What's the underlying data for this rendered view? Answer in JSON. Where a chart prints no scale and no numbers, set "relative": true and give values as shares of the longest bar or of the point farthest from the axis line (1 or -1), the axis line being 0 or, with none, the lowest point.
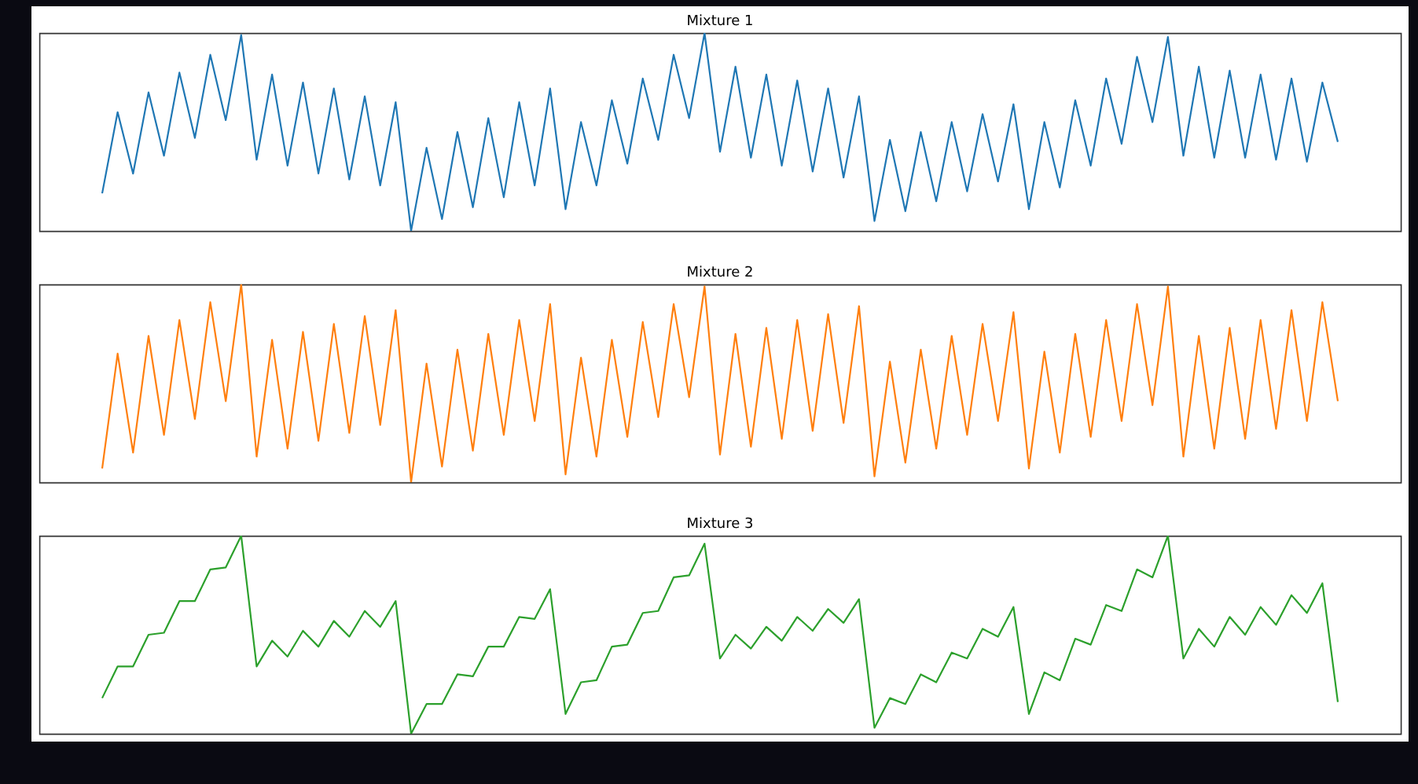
{
  "chart_data": [
    {
      "type": "line",
      "title": "Mixture 1",
      "relative": true,
      "tick_labels": false,
      "categories": [
        null,
        null,
        null,
        null,
        null,
        null,
        null,
        null,
        null,
        null,
        null,
        null,
        null,
        null,
        null,
        null,
        null,
        null,
        null,
        null,
        null,
        null,
        null,
        null,
        null,
        null,
        null,
        null,
        null,
        null,
        null,
        null,
        null,
        null,
        null,
        null,
        null,
        null,
        null,
        null,
        null,
        null,
        null,
        null,
        null,
        null,
        null,
        null,
        null,
        null,
        null,
        null,
        null,
        null,
        null,
        null,
        null,
        null,
        null,
        null,
        null,
        null,
        null,
        null,
        null,
        null,
        null,
        null,
        null,
        null,
        null,
        null,
        null,
        null,
        null,
        null,
        null,
        null,
        null,
        null,
        null
      ],
      "series": [
        {
          "color": "#1f77b4",
          "values": [
            0.19,
            0.6,
            0.29,
            0.7,
            0.38,
            0.8,
            0.47,
            0.89,
            0.56,
            0.99,
            0.36,
            0.79,
            0.33,
            0.75,
            0.29,
            0.72,
            0.26,
            0.68,
            0.23,
            0.65,
            0,
            0.42,
            0.06,
            0.5,
            0.12,
            0.57,
            0.17,
            0.65,
            0.23,
            0.72,
            0.11,
            0.55,
            0.23,
            0.66,
            0.34,
            0.77,
            0.46,
            0.89,
            0.57,
            1,
            0.4,
            0.83,
            0.37,
            0.79,
            0.33,
            0.76,
            0.3,
            0.72,
            0.27,
            0.68,
            0.05,
            0.46,
            0.1,
            0.5,
            0.15,
            0.55,
            0.2,
            0.59,
            0.25,
            0.64,
            0.11,
            0.55,
            0.22,
            0.66,
            0.33,
            0.77,
            0.44,
            0.88,
            0.55,
            0.98,
            0.38,
            0.83,
            0.37,
            0.81,
            0.37,
            0.79,
            0.36,
            0.77,
            0.35,
            0.75,
            0.45
          ]
        }
      ]
    },
    {
      "type": "line",
      "title": "Mixture 2",
      "relative": true,
      "tick_labels": false,
      "categories": [
        null,
        null,
        null,
        null,
        null,
        null,
        null,
        null,
        null,
        null,
        null,
        null,
        null,
        null,
        null,
        null,
        null,
        null,
        null,
        null,
        null,
        null,
        null,
        null,
        null,
        null,
        null,
        null,
        null,
        null,
        null,
        null,
        null,
        null,
        null,
        null,
        null,
        null,
        null,
        null,
        null,
        null,
        null,
        null,
        null,
        null,
        null,
        null,
        null,
        null,
        null,
        null,
        null,
        null,
        null,
        null,
        null,
        null,
        null,
        null,
        null,
        null,
        null,
        null,
        null,
        null,
        null,
        null,
        null,
        null,
        null,
        null,
        null,
        null,
        null,
        null,
        null,
        null,
        null,
        null,
        null
      ],
      "series": [
        {
          "color": "#ff7f0e",
          "values": [
            0.07,
            0.65,
            0.15,
            0.74,
            0.24,
            0.82,
            0.32,
            0.91,
            0.41,
            1,
            0.13,
            0.72,
            0.17,
            0.76,
            0.21,
            0.8,
            0.25,
            0.84,
            0.29,
            0.87,
            0,
            0.6,
            0.08,
            0.67,
            0.16,
            0.75,
            0.24,
            0.82,
            0.31,
            0.9,
            0.04,
            0.63,
            0.13,
            0.72,
            0.23,
            0.81,
            0.33,
            0.9,
            0.43,
            0.99,
            0.14,
            0.75,
            0.18,
            0.78,
            0.22,
            0.82,
            0.26,
            0.85,
            0.3,
            0.89,
            0.03,
            0.61,
            0.1,
            0.67,
            0.17,
            0.74,
            0.24,
            0.8,
            0.31,
            0.86,
            0.07,
            0.66,
            0.15,
            0.75,
            0.23,
            0.82,
            0.31,
            0.9,
            0.39,
            0.99,
            0.13,
            0.74,
            0.17,
            0.78,
            0.22,
            0.82,
            0.27,
            0.87,
            0.31,
            0.91,
            0.41
          ]
        }
      ]
    },
    {
      "type": "line",
      "title": "Mixture 3",
      "relative": true,
      "tick_labels": false,
      "categories": [
        null,
        null,
        null,
        null,
        null,
        null,
        null,
        null,
        null,
        null,
        null,
        null,
        null,
        null,
        null,
        null,
        null,
        null,
        null,
        null,
        null,
        null,
        null,
        null,
        null,
        null,
        null,
        null,
        null,
        null,
        null,
        null,
        null,
        null,
        null,
        null,
        null,
        null,
        null,
        null,
        null,
        null,
        null,
        null,
        null,
        null,
        null,
        null,
        null,
        null,
        null,
        null,
        null,
        null,
        null,
        null,
        null,
        null,
        null,
        null,
        null,
        null,
        null,
        null,
        null,
        null,
        null,
        null,
        null,
        null,
        null,
        null,
        null,
        null,
        null,
        null,
        null,
        null,
        null,
        null,
        null
      ],
      "series": [
        {
          "color": "#2ca02c",
          "values": [
            0.18,
            0.34,
            0.34,
            0.5,
            0.51,
            0.67,
            0.67,
            0.83,
            0.84,
            1,
            0.34,
            0.47,
            0.39,
            0.52,
            0.44,
            0.57,
            0.49,
            0.62,
            0.54,
            0.67,
            0,
            0.15,
            0.15,
            0.3,
            0.29,
            0.44,
            0.44,
            0.59,
            0.58,
            0.73,
            0.1,
            0.26,
            0.27,
            0.44,
            0.45,
            0.61,
            0.62,
            0.79,
            0.8,
            0.96,
            0.38,
            0.5,
            0.43,
            0.54,
            0.47,
            0.59,
            0.52,
            0.63,
            0.56,
            0.68,
            0.03,
            0.18,
            0.15,
            0.3,
            0.26,
            0.41,
            0.38,
            0.53,
            0.49,
            0.64,
            0.1,
            0.31,
            0.27,
            0.48,
            0.45,
            0.65,
            0.62,
            0.83,
            0.79,
            1,
            0.38,
            0.53,
            0.44,
            0.59,
            0.5,
            0.64,
            0.55,
            0.7,
            0.61,
            0.76,
            0.16
          ]
        }
      ]
    }
  ]
}
